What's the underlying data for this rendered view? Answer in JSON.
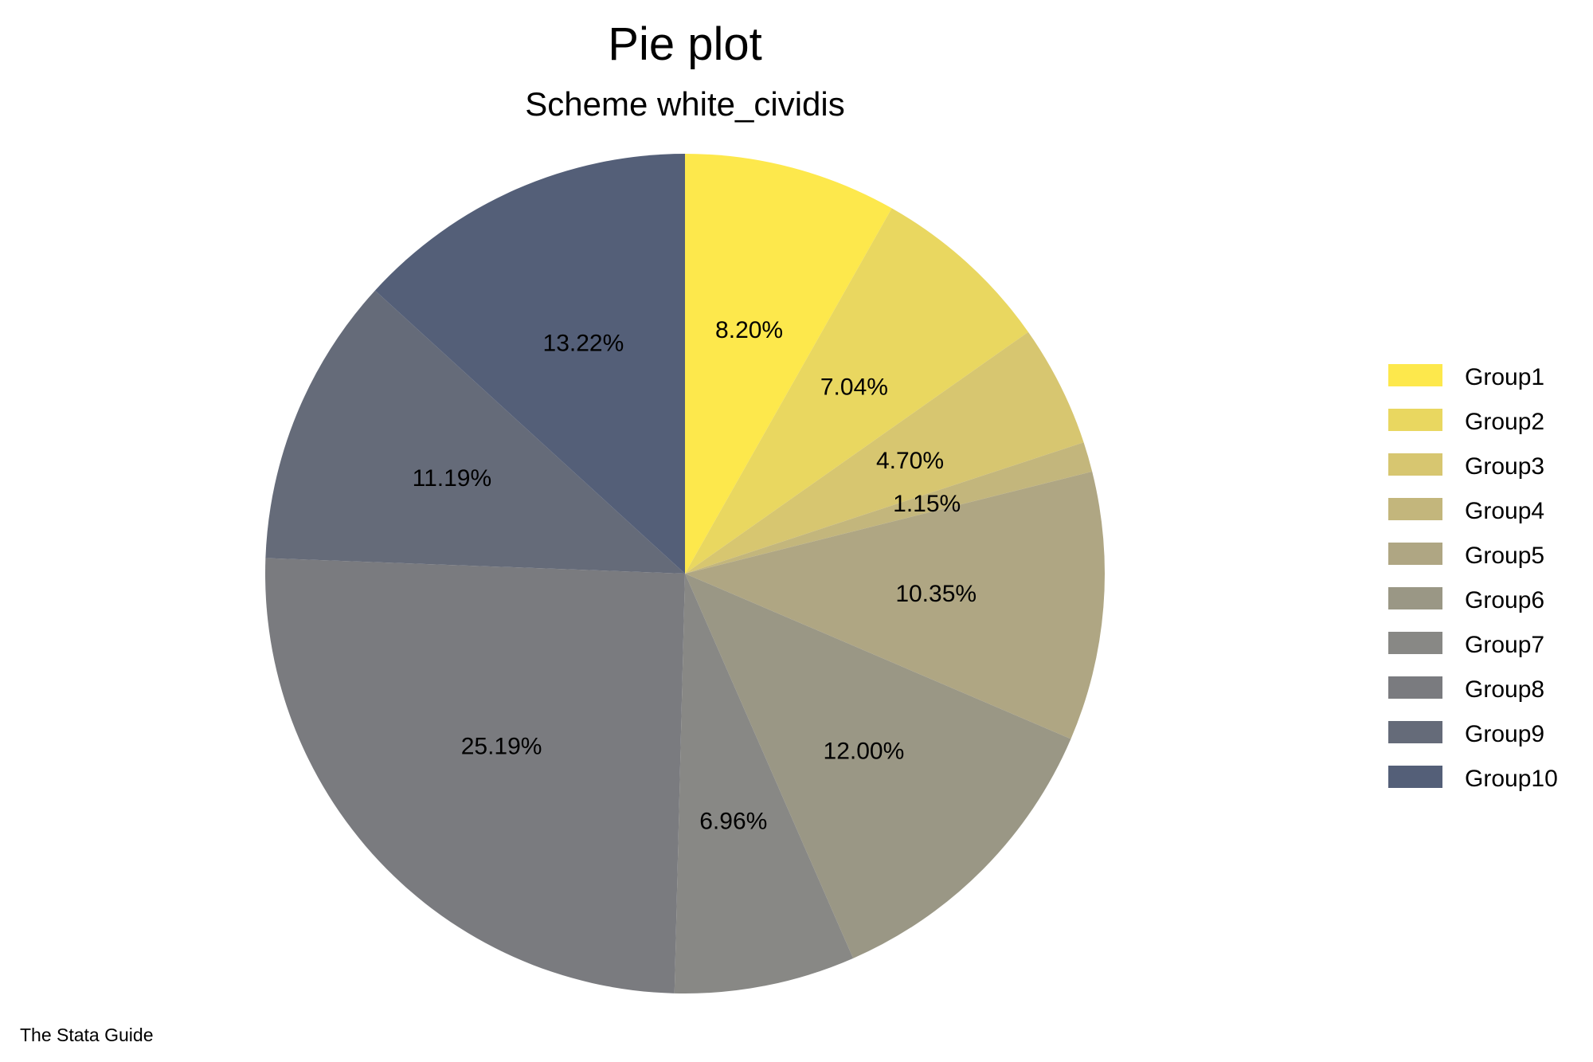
{
  "chart_data": {
    "type": "pie",
    "title": "Pie plot",
    "subtitle": "Scheme white_cividis",
    "note": "The Stata Guide",
    "legend_position": "right",
    "slices": [
      {
        "name": "Group1",
        "value": 8.2,
        "label": "8.20%",
        "color": "#FDE84C"
      },
      {
        "name": "Group2",
        "value": 7.04,
        "label": "7.04%",
        "color": "#E9D760"
      },
      {
        "name": "Group3",
        "value": 4.7,
        "label": "4.70%",
        "color": "#D7C670"
      },
      {
        "name": "Group4",
        "value": 1.15,
        "label": "1.15%",
        "color": "#C3B67C"
      },
      {
        "name": "Group5",
        "value": 10.35,
        "label": "10.35%",
        "color": "#AFA683"
      },
      {
        "name": "Group6",
        "value": 12.0,
        "label": "12.00%",
        "color": "#9A9785"
      },
      {
        "name": "Group7",
        "value": 6.96,
        "label": "6.96%",
        "color": "#888885"
      },
      {
        "name": "Group8",
        "value": 25.19,
        "label": "25.19%",
        "color": "#7A7B7F"
      },
      {
        "name": "Group9",
        "value": 11.19,
        "label": "11.19%",
        "color": "#656B79"
      },
      {
        "name": "Group10",
        "value": 13.22,
        "label": "13.22%",
        "color": "#545F78"
      }
    ]
  }
}
